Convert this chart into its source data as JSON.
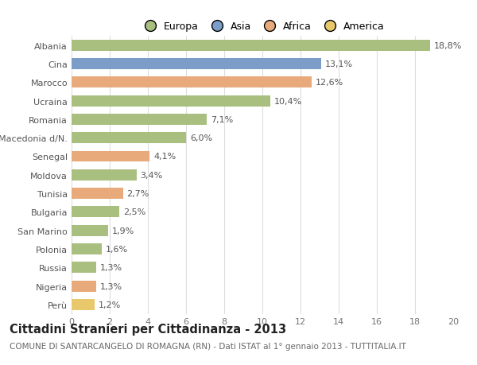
{
  "categories": [
    "Albania",
    "Cina",
    "Marocco",
    "Ucraina",
    "Romania",
    "Macedonia d/N.",
    "Senegal",
    "Moldova",
    "Tunisia",
    "Bulgaria",
    "San Marino",
    "Polonia",
    "Russia",
    "Nigeria",
    "Perù"
  ],
  "values": [
    18.8,
    13.1,
    12.6,
    10.4,
    7.1,
    6.0,
    4.1,
    3.4,
    2.7,
    2.5,
    1.9,
    1.6,
    1.3,
    1.3,
    1.2
  ],
  "labels": [
    "18,8%",
    "13,1%",
    "12,6%",
    "10,4%",
    "7,1%",
    "6,0%",
    "4,1%",
    "3,4%",
    "2,7%",
    "2,5%",
    "1,9%",
    "1,6%",
    "1,3%",
    "1,3%",
    "1,2%"
  ],
  "continents": [
    "Europa",
    "Asia",
    "Africa",
    "Europa",
    "Europa",
    "Europa",
    "Africa",
    "Europa",
    "Africa",
    "Europa",
    "Europa",
    "Europa",
    "Europa",
    "Africa",
    "America"
  ],
  "colors": {
    "Europa": "#a8bf80",
    "Asia": "#7b9dc7",
    "Africa": "#e8aa7a",
    "America": "#e8c86a"
  },
  "legend_labels": [
    "Europa",
    "Asia",
    "Africa",
    "America"
  ],
  "legend_colors": [
    "#a8bf80",
    "#7b9dc7",
    "#e8aa7a",
    "#e8c86a"
  ],
  "title": "Cittadini Stranieri per Cittadinanza - 2013",
  "subtitle": "COMUNE DI SANTARCANGELO DI ROMAGNA (RN) - Dati ISTAT al 1° gennaio 2013 - TUTTITALIA.IT",
  "xlim": [
    0,
    20
  ],
  "xticks": [
    0,
    2,
    4,
    6,
    8,
    10,
    12,
    14,
    16,
    18,
    20
  ],
  "background_color": "#ffffff",
  "grid_color": "#dddddd",
  "bar_height": 0.6,
  "label_fontsize": 8.0,
  "tick_fontsize": 8.0,
  "title_fontsize": 10.5,
  "subtitle_fontsize": 7.5
}
